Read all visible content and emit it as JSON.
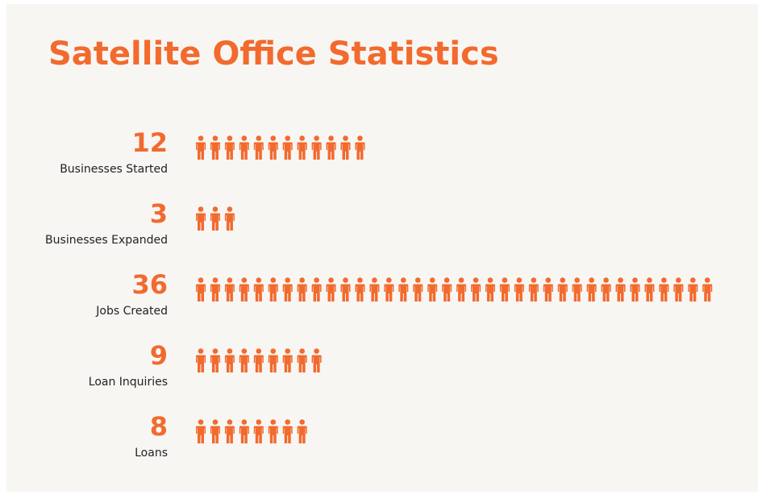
{
  "chart_data": {
    "type": "pictograph",
    "title": "Satellite Office Statistics",
    "categories": [
      "Businesses Started",
      "Businesses Expanded",
      "Jobs Created",
      "Loan Inquiries",
      "Loans"
    ],
    "values": [
      12,
      3,
      36,
      9,
      8
    ],
    "color": "#f26a2e"
  }
}
